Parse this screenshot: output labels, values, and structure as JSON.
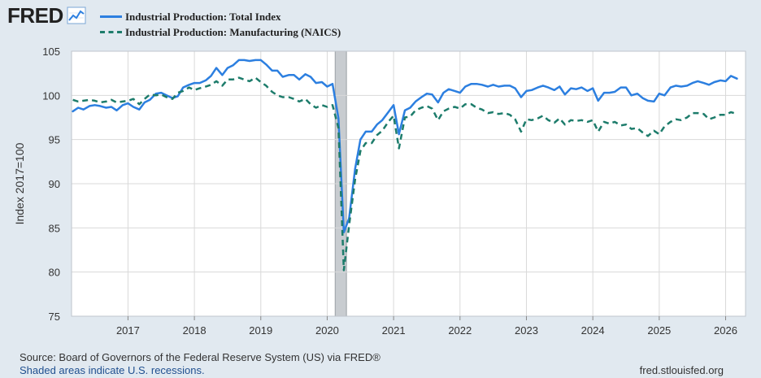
{
  "header": {
    "logo_text": "FRED",
    "logo_icon": "line-chart-icon"
  },
  "legend": {
    "items": [
      {
        "label": "Industrial Production: Total Index",
        "color": "#2c7fe0",
        "style": "solid"
      },
      {
        "label": "Industrial Production: Manufacturing (NAICS)",
        "color": "#1d7c6b",
        "style": "dashed"
      }
    ]
  },
  "chart_data": {
    "type": "line",
    "title": "",
    "xlabel": "",
    "ylabel": "Index 2017=100",
    "xlim": [
      2016.15,
      2026.3
    ],
    "ylim": [
      75,
      105
    ],
    "y_ticks": [
      75,
      80,
      85,
      90,
      95,
      100,
      105
    ],
    "x_ticks": [
      {
        "value": 2017,
        "label": "2017"
      },
      {
        "value": 2018,
        "label": "2018"
      },
      {
        "value": 2019,
        "label": "2019"
      },
      {
        "value": 2020,
        "label": "2020"
      },
      {
        "value": 2021,
        "label": "2021"
      },
      {
        "value": 2022,
        "label": "2022"
      },
      {
        "value": 2023,
        "label": "2023"
      },
      {
        "value": 2024,
        "label": "2024"
      },
      {
        "value": 2025,
        "label": "2025"
      },
      {
        "value": 2026,
        "label": "2026"
      }
    ],
    "grid": true,
    "recession": {
      "start": 2020.12,
      "end": 2020.29,
      "color": "#c8ccd0"
    },
    "series": [
      {
        "name": "Industrial Production: Total Index",
        "color": "#2c7fe0",
        "dashed": false,
        "points": [
          [
            2016.17,
            98.2
          ],
          [
            2016.25,
            98.6
          ],
          [
            2016.33,
            98.4
          ],
          [
            2016.42,
            98.8
          ],
          [
            2016.5,
            98.9
          ],
          [
            2016.58,
            98.8
          ],
          [
            2016.67,
            98.6
          ],
          [
            2016.75,
            98.7
          ],
          [
            2016.83,
            98.3
          ],
          [
            2016.92,
            98.9
          ],
          [
            2017.0,
            99.1
          ],
          [
            2017.08,
            98.7
          ],
          [
            2017.17,
            98.4
          ],
          [
            2017.25,
            99.2
          ],
          [
            2017.33,
            99.5
          ],
          [
            2017.42,
            100.2
          ],
          [
            2017.5,
            100.3
          ],
          [
            2017.58,
            100.0
          ],
          [
            2017.67,
            99.7
          ],
          [
            2017.75,
            99.9
          ],
          [
            2017.83,
            100.9
          ],
          [
            2017.92,
            101.2
          ],
          [
            2018.0,
            101.4
          ],
          [
            2018.08,
            101.4
          ],
          [
            2018.17,
            101.7
          ],
          [
            2018.25,
            102.2
          ],
          [
            2018.33,
            103.1
          ],
          [
            2018.42,
            102.3
          ],
          [
            2018.5,
            103.1
          ],
          [
            2018.58,
            103.4
          ],
          [
            2018.67,
            104.0
          ],
          [
            2018.75,
            104.0
          ],
          [
            2018.83,
            103.9
          ],
          [
            2018.92,
            104.0
          ],
          [
            2019.0,
            104.0
          ],
          [
            2019.08,
            103.5
          ],
          [
            2019.17,
            102.8
          ],
          [
            2019.25,
            102.8
          ],
          [
            2019.33,
            102.1
          ],
          [
            2019.42,
            102.3
          ],
          [
            2019.5,
            102.3
          ],
          [
            2019.58,
            101.8
          ],
          [
            2019.67,
            102.4
          ],
          [
            2019.75,
            102.1
          ],
          [
            2019.83,
            101.4
          ],
          [
            2019.92,
            101.5
          ],
          [
            2020.0,
            101.0
          ],
          [
            2020.08,
            101.3
          ],
          [
            2020.17,
            97.4
          ],
          [
            2020.25,
            84.5
          ],
          [
            2020.33,
            86.1
          ],
          [
            2020.42,
            91.7
          ],
          [
            2020.5,
            95.0
          ],
          [
            2020.58,
            95.9
          ],
          [
            2020.67,
            95.9
          ],
          [
            2020.75,
            96.7
          ],
          [
            2020.83,
            97.2
          ],
          [
            2020.92,
            98.1
          ],
          [
            2021.0,
            98.9
          ],
          [
            2021.08,
            95.6
          ],
          [
            2021.17,
            98.3
          ],
          [
            2021.25,
            98.6
          ],
          [
            2021.33,
            99.3
          ],
          [
            2021.42,
            99.8
          ],
          [
            2021.5,
            100.2
          ],
          [
            2021.58,
            100.1
          ],
          [
            2021.67,
            99.2
          ],
          [
            2021.75,
            100.3
          ],
          [
            2021.83,
            100.7
          ],
          [
            2021.92,
            100.5
          ],
          [
            2022.0,
            100.3
          ],
          [
            2022.08,
            101.0
          ],
          [
            2022.17,
            101.3
          ],
          [
            2022.25,
            101.3
          ],
          [
            2022.33,
            101.2
          ],
          [
            2022.42,
            101.0
          ],
          [
            2022.5,
            101.2
          ],
          [
            2022.58,
            101.0
          ],
          [
            2022.67,
            101.1
          ],
          [
            2022.75,
            101.1
          ],
          [
            2022.83,
            100.8
          ],
          [
            2022.92,
            99.8
          ],
          [
            2023.0,
            100.5
          ],
          [
            2023.08,
            100.6
          ],
          [
            2023.17,
            100.9
          ],
          [
            2023.25,
            101.1
          ],
          [
            2023.33,
            100.9
          ],
          [
            2023.42,
            100.6
          ],
          [
            2023.5,
            101.0
          ],
          [
            2023.58,
            100.1
          ],
          [
            2023.67,
            100.8
          ],
          [
            2023.75,
            100.7
          ],
          [
            2023.83,
            100.9
          ],
          [
            2023.92,
            100.5
          ],
          [
            2024.0,
            100.8
          ],
          [
            2024.08,
            99.4
          ],
          [
            2024.17,
            100.3
          ],
          [
            2024.25,
            100.3
          ],
          [
            2024.33,
            100.4
          ],
          [
            2024.42,
            100.9
          ],
          [
            2024.5,
            100.9
          ],
          [
            2024.58,
            100.0
          ],
          [
            2024.67,
            100.2
          ],
          [
            2024.75,
            99.7
          ],
          [
            2024.83,
            99.4
          ],
          [
            2024.92,
            99.3
          ],
          [
            2025.0,
            100.2
          ],
          [
            2025.08,
            100.0
          ],
          [
            2025.17,
            100.9
          ],
          [
            2025.25,
            101.1
          ],
          [
            2025.33,
            101.0
          ],
          [
            2025.42,
            101.1
          ],
          [
            2025.5,
            101.4
          ],
          [
            2025.58,
            101.6
          ],
          [
            2025.67,
            101.4
          ],
          [
            2025.75,
            101.2
          ],
          [
            2025.83,
            101.5
          ],
          [
            2025.92,
            101.7
          ],
          [
            2026.0,
            101.6
          ],
          [
            2026.08,
            102.2
          ],
          [
            2026.17,
            101.9
          ]
        ]
      },
      {
        "name": "Industrial Production: Manufacturing (NAICS)",
        "color": "#1d7c6b",
        "dashed": true,
        "points": [
          [
            2016.17,
            99.5
          ],
          [
            2016.25,
            99.3
          ],
          [
            2016.33,
            99.4
          ],
          [
            2016.42,
            99.5
          ],
          [
            2016.5,
            99.4
          ],
          [
            2016.58,
            99.2
          ],
          [
            2016.67,
            99.3
          ],
          [
            2016.75,
            99.5
          ],
          [
            2016.83,
            99.2
          ],
          [
            2016.92,
            99.3
          ],
          [
            2017.0,
            99.4
          ],
          [
            2017.08,
            99.6
          ],
          [
            2017.17,
            99.0
          ],
          [
            2017.25,
            99.6
          ],
          [
            2017.33,
            100.1
          ],
          [
            2017.42,
            100.0
          ],
          [
            2017.5,
            100.1
          ],
          [
            2017.58,
            99.8
          ],
          [
            2017.67,
            99.6
          ],
          [
            2017.75,
            100.3
          ],
          [
            2017.83,
            100.5
          ],
          [
            2017.92,
            100.9
          ],
          [
            2018.0,
            100.6
          ],
          [
            2018.08,
            100.8
          ],
          [
            2018.17,
            101.0
          ],
          [
            2018.25,
            101.2
          ],
          [
            2018.33,
            101.6
          ],
          [
            2018.42,
            101.1
          ],
          [
            2018.5,
            101.8
          ],
          [
            2018.58,
            101.8
          ],
          [
            2018.67,
            102.0
          ],
          [
            2018.75,
            101.8
          ],
          [
            2018.83,
            101.6
          ],
          [
            2018.92,
            102.0
          ],
          [
            2019.0,
            101.5
          ],
          [
            2019.08,
            101.1
          ],
          [
            2019.17,
            100.4
          ],
          [
            2019.25,
            100.0
          ],
          [
            2019.33,
            99.8
          ],
          [
            2019.42,
            99.8
          ],
          [
            2019.5,
            99.6
          ],
          [
            2019.58,
            99.3
          ],
          [
            2019.67,
            99.6
          ],
          [
            2019.75,
            99.0
          ],
          [
            2019.83,
            98.6
          ],
          [
            2019.92,
            98.9
          ],
          [
            2020.0,
            98.7
          ],
          [
            2020.08,
            98.9
          ],
          [
            2020.17,
            96.3
          ],
          [
            2020.25,
            80.2
          ],
          [
            2020.33,
            85.3
          ],
          [
            2020.42,
            90.5
          ],
          [
            2020.5,
            93.7
          ],
          [
            2020.58,
            94.6
          ],
          [
            2020.67,
            94.6
          ],
          [
            2020.75,
            95.5
          ],
          [
            2020.83,
            96.0
          ],
          [
            2020.92,
            97.0
          ],
          [
            2021.0,
            97.7
          ],
          [
            2021.08,
            94.0
          ],
          [
            2021.17,
            97.5
          ],
          [
            2021.25,
            97.6
          ],
          [
            2021.33,
            98.3
          ],
          [
            2021.42,
            98.6
          ],
          [
            2021.5,
            98.8
          ],
          [
            2021.58,
            98.5
          ],
          [
            2021.67,
            97.2
          ],
          [
            2021.75,
            98.2
          ],
          [
            2021.83,
            98.5
          ],
          [
            2021.92,
            98.7
          ],
          [
            2022.0,
            98.5
          ],
          [
            2022.08,
            99.0
          ],
          [
            2022.17,
            99.0
          ],
          [
            2022.25,
            98.6
          ],
          [
            2022.33,
            98.4
          ],
          [
            2022.42,
            98.0
          ],
          [
            2022.5,
            98.1
          ],
          [
            2022.58,
            97.9
          ],
          [
            2022.67,
            98.0
          ],
          [
            2022.75,
            97.8
          ],
          [
            2022.83,
            97.3
          ],
          [
            2022.92,
            95.9
          ],
          [
            2023.0,
            97.3
          ],
          [
            2023.08,
            97.2
          ],
          [
            2023.17,
            97.4
          ],
          [
            2023.25,
            97.7
          ],
          [
            2023.33,
            97.2
          ],
          [
            2023.42,
            96.9
          ],
          [
            2023.5,
            97.4
          ],
          [
            2023.58,
            96.7
          ],
          [
            2023.67,
            97.2
          ],
          [
            2023.75,
            97.1
          ],
          [
            2023.83,
            97.2
          ],
          [
            2023.92,
            97.0
          ],
          [
            2024.0,
            97.2
          ],
          [
            2024.08,
            95.9
          ],
          [
            2024.17,
            97.0
          ],
          [
            2024.25,
            96.8
          ],
          [
            2024.33,
            97.0
          ],
          [
            2024.42,
            96.6
          ],
          [
            2024.5,
            96.7
          ],
          [
            2024.58,
            96.2
          ],
          [
            2024.67,
            96.3
          ],
          [
            2024.75,
            95.8
          ],
          [
            2024.83,
            95.4
          ],
          [
            2024.92,
            96.0
          ],
          [
            2025.0,
            95.6
          ],
          [
            2025.08,
            96.5
          ],
          [
            2025.17,
            97.0
          ],
          [
            2025.25,
            97.3
          ],
          [
            2025.33,
            97.2
          ],
          [
            2025.42,
            97.5
          ],
          [
            2025.5,
            98.0
          ],
          [
            2025.58,
            98.0
          ],
          [
            2025.67,
            97.9
          ],
          [
            2025.75,
            97.3
          ],
          [
            2025.83,
            97.5
          ],
          [
            2025.92,
            97.8
          ],
          [
            2026.0,
            97.8
          ],
          [
            2026.08,
            98.1
          ],
          [
            2026.17,
            97.9
          ]
        ]
      }
    ]
  },
  "footer": {
    "source": "Source: Board of Governors of the Federal Reserve System (US) via FRED®",
    "shaded_note": "Shaded areas indicate U.S. recessions.",
    "site": "fred.stlouisfed.org"
  }
}
